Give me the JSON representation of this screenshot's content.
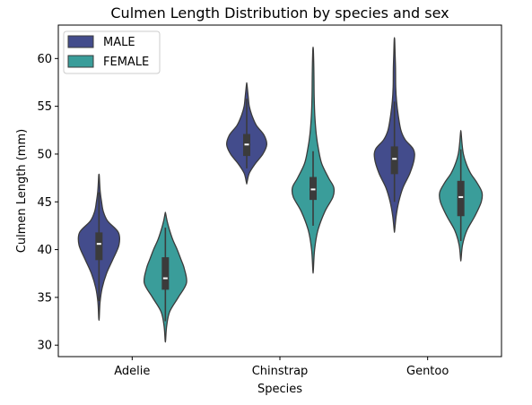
{
  "chart_data": {
    "type": "violin",
    "title": "Culmen Length Distribution by species and sex",
    "xlabel": "Species",
    "ylabel": "Culmen Length (mm)",
    "ylim": [
      28.8,
      63.5
    ],
    "yticks": [
      30,
      35,
      40,
      45,
      50,
      55,
      60
    ],
    "categories": [
      "Adelie",
      "Chinstrap",
      "Gentoo"
    ],
    "legend_position": "upper-left",
    "grid": false,
    "series": [
      {
        "name": "MALE",
        "color": "#434c8c",
        "violins": [
          {
            "category": "Adelie",
            "min": 32.8,
            "max": 47.8,
            "q1": 38.9,
            "median": 40.6,
            "q3": 41.8,
            "whisker_low": 34.6,
            "whisker_high": 46.0,
            "profile": [
              [
                32.8,
                0.01
              ],
              [
                34.5,
                0.05
              ],
              [
                36.0,
                0.15
              ],
              [
                37.5,
                0.35
              ],
              [
                39.0,
                0.65
              ],
              [
                40.5,
                0.93
              ],
              [
                41.8,
                0.9
              ],
              [
                43.0,
                0.4
              ],
              [
                44.0,
                0.2
              ],
              [
                45.0,
                0.12
              ],
              [
                46.0,
                0.06
              ],
              [
                47.0,
                0.03
              ],
              [
                47.8,
                0.01
              ]
            ]
          },
          {
            "category": "Chinstrap",
            "min": 47.0,
            "max": 57.3,
            "q1": 49.8,
            "median": 51.0,
            "q3": 52.1,
            "whisker_low": 48.5,
            "whisker_high": 55.8,
            "profile": [
              [
                47.0,
                0.01
              ],
              [
                48.0,
                0.12
              ],
              [
                49.0,
                0.4
              ],
              [
                50.0,
                0.75
              ],
              [
                51.0,
                0.93
              ],
              [
                52.0,
                0.8
              ],
              [
                53.0,
                0.45
              ],
              [
                54.0,
                0.25
              ],
              [
                55.0,
                0.12
              ],
              [
                56.0,
                0.07
              ],
              [
                57.3,
                0.01
              ]
            ]
          },
          {
            "category": "Gentoo",
            "min": 42.0,
            "max": 62.0,
            "q1": 47.9,
            "median": 49.5,
            "q3": 50.8,
            "whisker_low": 45.0,
            "whisker_high": 55.5,
            "profile": [
              [
                42.0,
                0.01
              ],
              [
                43.5,
                0.08
              ],
              [
                45.0,
                0.2
              ],
              [
                46.5,
                0.4
              ],
              [
                48.0,
                0.72
              ],
              [
                49.5,
                0.92
              ],
              [
                50.5,
                0.88
              ],
              [
                51.5,
                0.5
              ],
              [
                52.5,
                0.3
              ],
              [
                54.0,
                0.18
              ],
              [
                55.5,
                0.1
              ],
              [
                57.0,
                0.06
              ],
              [
                59.0,
                0.05
              ],
              [
                60.5,
                0.03
              ],
              [
                62.0,
                0.01
              ]
            ]
          }
        ]
      },
      {
        "name": "FEMALE",
        "color": "#3a9d9a",
        "violins": [
          {
            "category": "Adelie",
            "min": 30.5,
            "max": 43.8,
            "q1": 35.8,
            "median": 37.0,
            "q3": 39.2,
            "whisker_low": 32.5,
            "whisker_high": 42.3,
            "profile": [
              [
                30.5,
                0.01
              ],
              [
                32.0,
                0.06
              ],
              [
                33.5,
                0.2
              ],
              [
                35.0,
                0.6
              ],
              [
                36.5,
                0.98
              ],
              [
                38.0,
                0.88
              ],
              [
                39.0,
                0.72
              ],
              [
                40.0,
                0.55
              ],
              [
                41.0,
                0.35
              ],
              [
                42.0,
                0.2
              ],
              [
                43.0,
                0.08
              ],
              [
                43.8,
                0.01
              ]
            ]
          },
          {
            "category": "Chinstrap",
            "min": 37.8,
            "max": 61.0,
            "q1": 45.2,
            "median": 46.3,
            "q3": 47.6,
            "whisker_low": 42.5,
            "whisker_high": 50.3,
            "profile": [
              [
                37.8,
                0.01
              ],
              [
                40.0,
                0.07
              ],
              [
                42.0,
                0.22
              ],
              [
                44.0,
                0.55
              ],
              [
                45.5,
                0.92
              ],
              [
                46.5,
                0.96
              ],
              [
                47.5,
                0.72
              ],
              [
                49.0,
                0.4
              ],
              [
                50.5,
                0.25
              ],
              [
                52.0,
                0.15
              ],
              [
                54.0,
                0.08
              ],
              [
                56.0,
                0.05
              ],
              [
                58.0,
                0.04
              ],
              [
                59.5,
                0.03
              ],
              [
                61.0,
                0.01
              ]
            ]
          },
          {
            "category": "Gentoo",
            "min": 39.0,
            "max": 52.3,
            "q1": 43.5,
            "median": 45.5,
            "q3": 47.2,
            "whisker_low": 40.9,
            "whisker_high": 50.5,
            "profile": [
              [
                39.0,
                0.01
              ],
              [
                40.5,
                0.08
              ],
              [
                42.0,
                0.28
              ],
              [
                43.5,
                0.65
              ],
              [
                45.0,
                0.95
              ],
              [
                46.0,
                0.98
              ],
              [
                47.0,
                0.75
              ],
              [
                48.0,
                0.45
              ],
              [
                49.0,
                0.25
              ],
              [
                50.0,
                0.12
              ],
              [
                51.0,
                0.06
              ],
              [
                52.3,
                0.01
              ]
            ]
          }
        ]
      }
    ]
  }
}
